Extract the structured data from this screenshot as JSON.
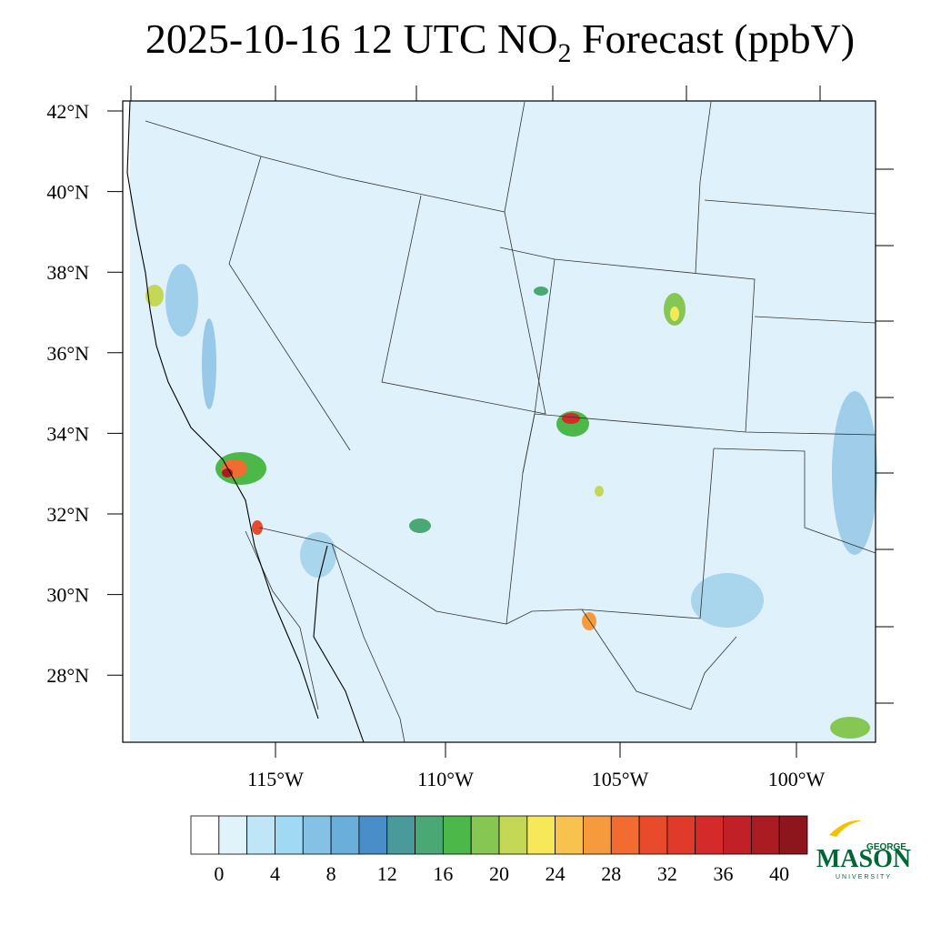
{
  "title": {
    "parts": [
      "2025-10-16 12 UTC NO",
      "2",
      " Forecast (ppbV)"
    ]
  },
  "map": {
    "lat_labels": [
      "42°N",
      "40°N",
      "38°N",
      "36°N",
      "34°N",
      "32°N",
      "30°N",
      "28°N"
    ],
    "lon_labels": [
      "115°W",
      "110°W",
      "105°W",
      "100°W"
    ],
    "background": "#dff2fb"
  },
  "colorbar": {
    "colors": [
      "#ffffff",
      "#e0f3fb",
      "#bfe6f7",
      "#a0d9f3",
      "#85c1e5",
      "#6aaedc",
      "#4a8ec9",
      "#4a9a9c",
      "#4aa874",
      "#4cb84a",
      "#86c652",
      "#c5d856",
      "#f7e85a",
      "#f7c34e",
      "#f59b3e",
      "#f26b30",
      "#e84a2c",
      "#df3a2a",
      "#d42a2a",
      "#c22027",
      "#aa1c22",
      "#8c161b"
    ],
    "ticks": [
      0,
      4,
      8,
      12,
      16,
      20,
      24,
      28,
      32,
      36,
      40
    ]
  },
  "logo": {
    "top": "GEORGE",
    "main": "MASON",
    "bottom": "UNIVERSITY"
  }
}
